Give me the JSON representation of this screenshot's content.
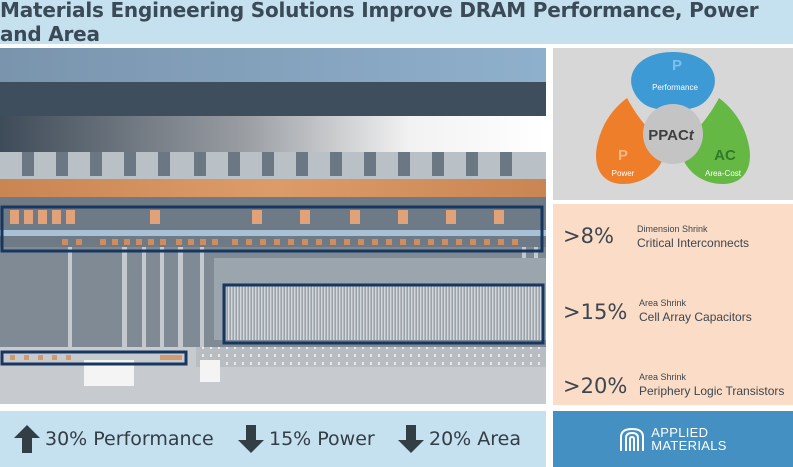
{
  "title": "Materials Engineering Solutions Improve DRAM Performance, Power and Area",
  "ppact": {
    "center_label": "PPAC",
    "center_suffix": "t",
    "performance_letter": "P",
    "performance_label": "Performance",
    "power_letter": "P",
    "power_label": "Power",
    "areacost_letter": "AC",
    "areacost_label": "Area-Cost",
    "colors": {
      "performance": "#3d9ad4",
      "power": "#ee7e2a",
      "areacost": "#66b845"
    }
  },
  "stats": [
    {
      "value": ">8%",
      "sub": "Dimension Shrink",
      "main": "Critical Interconnects"
    },
    {
      "value": ">15%",
      "sub": "Area Shrink",
      "main": "Cell Array Capacitors"
    },
    {
      "value": ">20%",
      "sub": "Area Shrink",
      "main": "Periphery Logic Transistors"
    }
  ],
  "metrics": [
    {
      "label": "30% Performance",
      "direction": "up",
      "icon": "arrow-up-icon"
    },
    {
      "label": "15% Power",
      "direction": "down",
      "icon": "arrow-down-icon"
    },
    {
      "label": "20% Area",
      "direction": "down",
      "icon": "arrow-down-icon"
    }
  ],
  "brand": {
    "line1": "APPLIED",
    "line2": "MATERIALS",
    "icon": "applied-materials-logo-icon"
  }
}
